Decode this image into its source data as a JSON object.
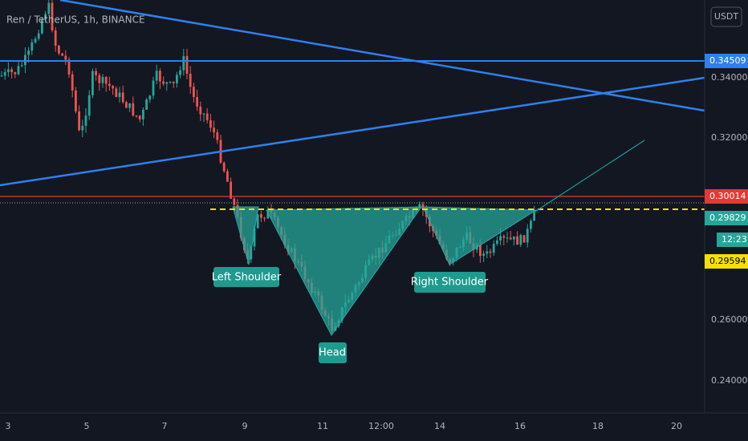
{
  "header": {
    "title": "Ren / TetherUS, 1h, BINANCE"
  },
  "price_axis": {
    "currency": "USDT",
    "labels": [
      "0.34000",
      "0.32000",
      "0.26000",
      "0.24000"
    ]
  },
  "price_tags": {
    "resistance": "0.34509",
    "neckline": "0.30014",
    "last_price": "0.29829",
    "countdown": "12:23",
    "marker": "0.29594"
  },
  "time_axis": {
    "labels": [
      "3",
      "5",
      "7",
      "9",
      "11",
      "12:00",
      "14",
      "16",
      "18",
      "20"
    ]
  },
  "annotations": {
    "left_shoulder": "Left Shoulder",
    "head": "Head",
    "right_shoulder": "Right Shoulder"
  }
}
